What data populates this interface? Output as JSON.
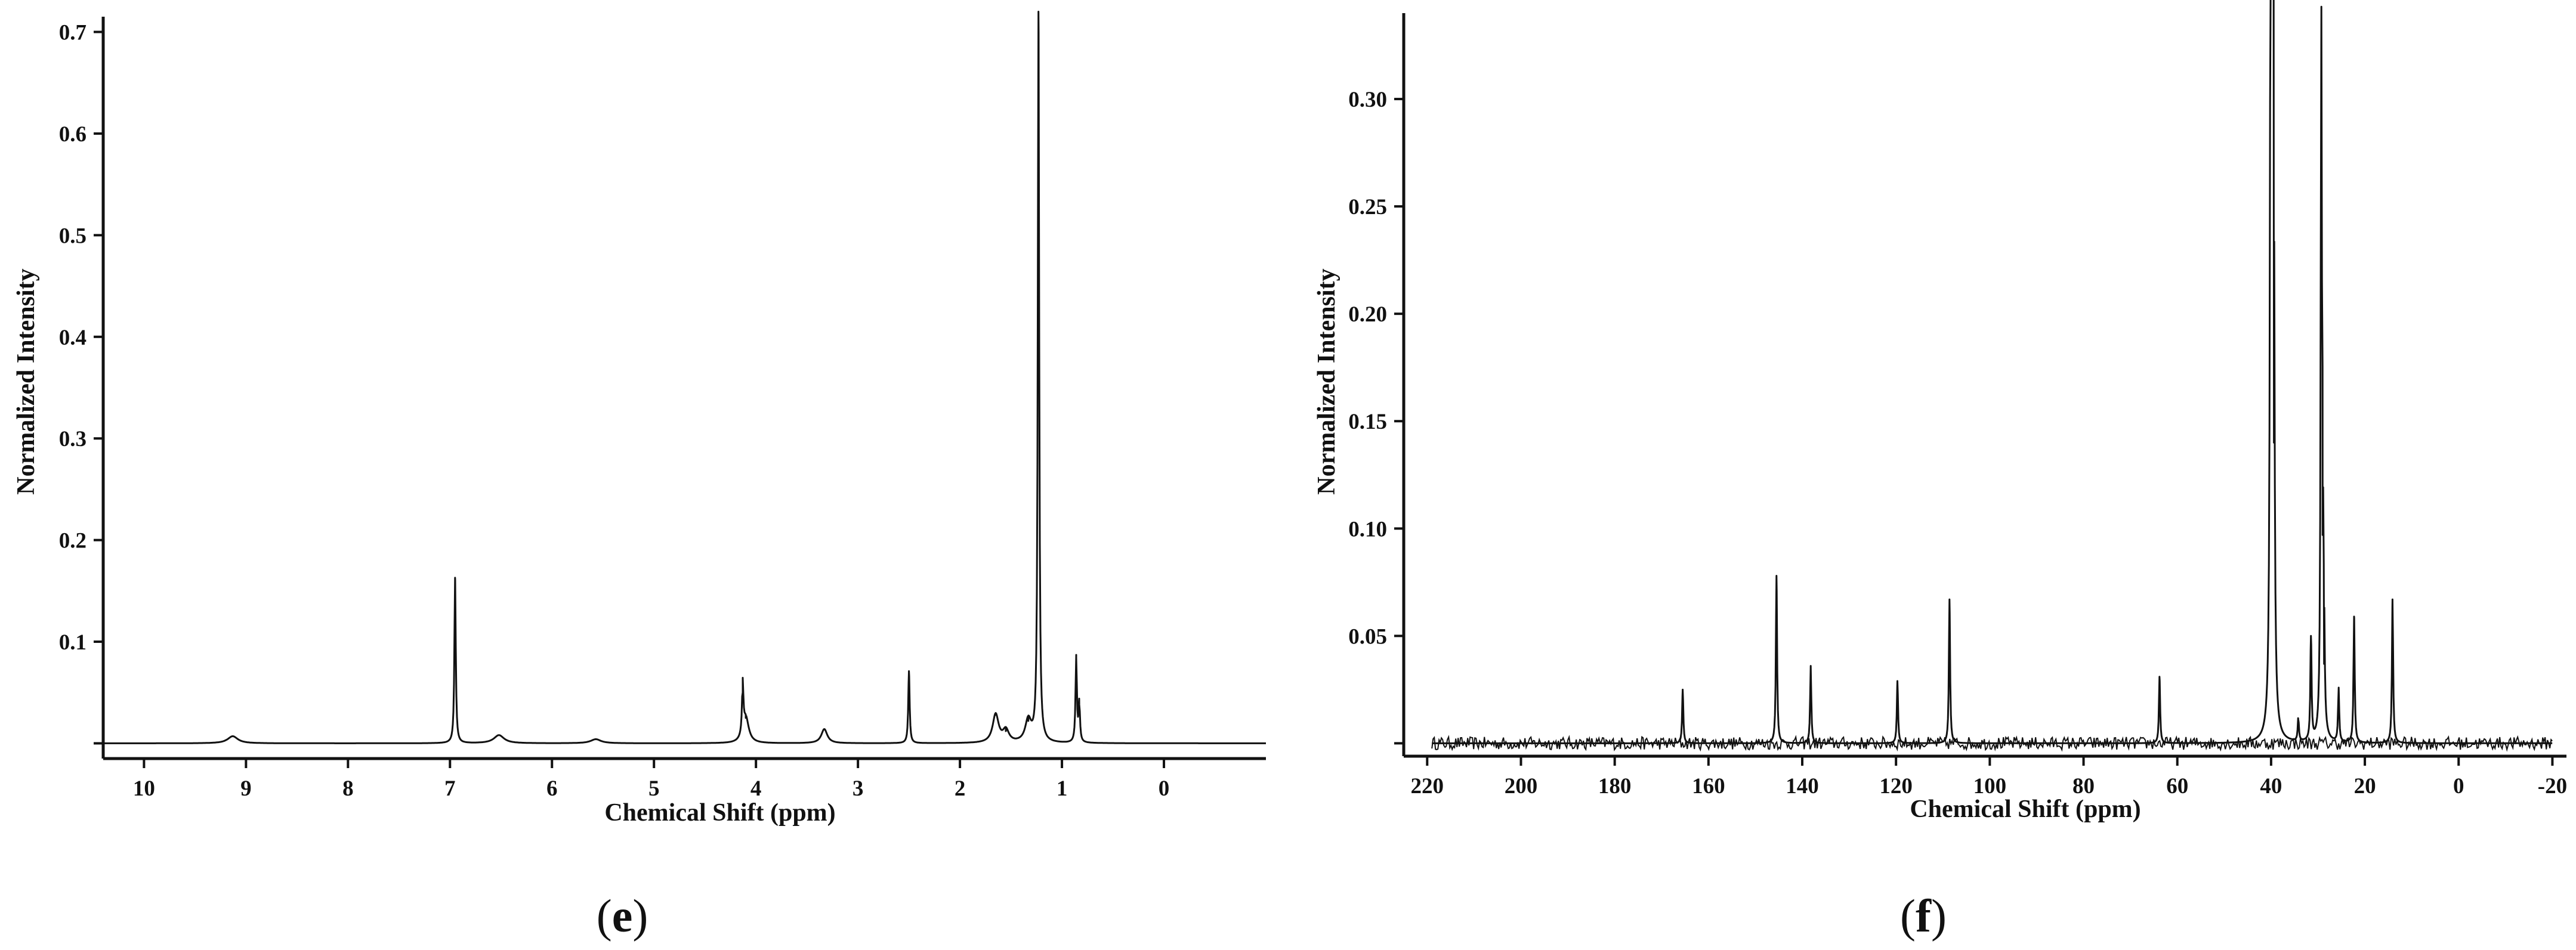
{
  "chart_data": [
    {
      "type": "line",
      "panel_label": "e",
      "xlabel": "Chemical Shift (ppm)",
      "ylabel": "Normalized Intensity",
      "x_reversed": true,
      "xlim": [
        10.4,
        -1.0
      ],
      "ylim": [
        -0.015,
        0.715
      ],
      "x_ticks": [
        10,
        9,
        8,
        7,
        6,
        5,
        4,
        3,
        2,
        1,
        0
      ],
      "y_ticks": [
        0.0,
        0.1,
        0.2,
        0.3,
        0.4,
        0.5,
        0.6,
        0.7
      ],
      "y_tick_labels": [
        "",
        "0.1",
        "0.2",
        "0.3",
        "0.4",
        "0.5",
        "0.6",
        "0.7"
      ],
      "baseline": 0.0,
      "peaks": [
        {
          "ppm": 9.13,
          "intensity": 0.007
        },
        {
          "ppm": 6.95,
          "intensity": 0.163
        },
        {
          "ppm": 6.52,
          "intensity": 0.008
        },
        {
          "ppm": 5.57,
          "intensity": 0.004
        },
        {
          "ppm": 4.13,
          "intensity": 0.05
        },
        {
          "ppm": 4.1,
          "intensity": 0.025
        },
        {
          "ppm": 3.33,
          "intensity": 0.014
        },
        {
          "ppm": 2.5,
          "intensity": 0.071
        },
        {
          "ppm": 1.65,
          "intensity": 0.028
        },
        {
          "ppm": 1.55,
          "intensity": 0.012
        },
        {
          "ppm": 1.33,
          "intensity": 0.022
        },
        {
          "ppm": 1.23,
          "intensity": 0.72
        },
        {
          "ppm": 0.86,
          "intensity": 0.084
        },
        {
          "ppm": 0.83,
          "intensity": 0.038
        }
      ]
    },
    {
      "type": "line",
      "panel_label": "f",
      "xlabel": "Chemical Shift (ppm)",
      "ylabel": "Normalized Intensity",
      "x_reversed": true,
      "xlim": [
        225,
        -23
      ],
      "ylim": [
        -0.006,
        0.34
      ],
      "x_ticks": [
        220,
        200,
        180,
        160,
        140,
        120,
        100,
        80,
        60,
        40,
        20,
        0,
        -20
      ],
      "y_ticks": [
        0.0,
        0.05,
        0.1,
        0.15,
        0.2,
        0.25,
        0.3
      ],
      "y_tick_labels": [
        "",
        "0.05",
        "0.10",
        "0.15",
        "0.20",
        "0.25",
        "0.30"
      ],
      "baseline": 0.0,
      "noise_amplitude": 0.003,
      "x_range_data": [
        219,
        -20
      ],
      "peaks": [
        {
          "ppm": 165.5,
          "intensity": 0.025
        },
        {
          "ppm": 145.5,
          "intensity": 0.078
        },
        {
          "ppm": 138.2,
          "intensity": 0.036
        },
        {
          "ppm": 119.7,
          "intensity": 0.029
        },
        {
          "ppm": 108.6,
          "intensity": 0.067
        },
        {
          "ppm": 63.8,
          "intensity": 0.031
        },
        {
          "ppm": 40.1,
          "intensity": 0.35
        },
        {
          "ppm": 39.9,
          "intensity": 0.35
        },
        {
          "ppm": 39.6,
          "intensity": 0.35
        },
        {
          "ppm": 39.4,
          "intensity": 0.14
        },
        {
          "ppm": 34.2,
          "intensity": 0.011
        },
        {
          "ppm": 31.5,
          "intensity": 0.05
        },
        {
          "ppm": 29.3,
          "intensity": 0.325
        },
        {
          "ppm": 29.0,
          "intensity": 0.097
        },
        {
          "ppm": 28.7,
          "intensity": 0.037
        },
        {
          "ppm": 25.6,
          "intensity": 0.025
        },
        {
          "ppm": 22.3,
          "intensity": 0.059
        },
        {
          "ppm": 14.1,
          "intensity": 0.067
        }
      ]
    }
  ]
}
